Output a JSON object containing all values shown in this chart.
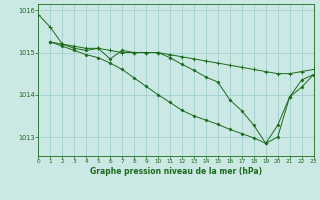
{
  "background_color": "#cce8e4",
  "grid_color": "#99cccc",
  "line_color": "#1a6b1a",
  "marker_color": "#1a6b1a",
  "xlabel": "Graphe pression niveau de la mer (hPa)",
  "xlim": [
    0,
    23
  ],
  "ylim": [
    1012.55,
    1016.15
  ],
  "yticks": [
    1013,
    1014,
    1015,
    1016
  ],
  "xticks": [
    0,
    1,
    2,
    3,
    4,
    5,
    6,
    7,
    8,
    9,
    10,
    11,
    12,
    13,
    14,
    15,
    16,
    17,
    18,
    19,
    20,
    21,
    22,
    23
  ],
  "line1_x": [
    0,
    1,
    2,
    3,
    4,
    5,
    6,
    7,
    8,
    9,
    10,
    11,
    12,
    13,
    14,
    15,
    16,
    17,
    18,
    19,
    20,
    21,
    22,
    23
  ],
  "line1_y": [
    1015.9,
    1015.6,
    1015.2,
    1015.15,
    1015.1,
    1015.1,
    1015.05,
    1015.0,
    1015.0,
    1015.0,
    1015.0,
    1014.95,
    1014.9,
    1014.85,
    1014.8,
    1014.75,
    1014.7,
    1014.65,
    1014.6,
    1014.55,
    1014.5,
    1014.5,
    1014.55,
    1014.6
  ],
  "line2_x": [
    1,
    2,
    3,
    4,
    5,
    6,
    7,
    8,
    9,
    10,
    11,
    12,
    13,
    14,
    15,
    16,
    17,
    18,
    19,
    20,
    21,
    22,
    23
  ],
  "line2_y": [
    1015.25,
    1015.2,
    1015.1,
    1015.05,
    1015.1,
    1014.85,
    1015.05,
    1015.0,
    1015.0,
    1015.0,
    1014.88,
    1014.72,
    1014.58,
    1014.42,
    1014.3,
    1013.88,
    1013.62,
    1013.28,
    1012.85,
    1013.28,
    1013.95,
    1014.35,
    1014.48
  ],
  "line3_x": [
    1,
    2,
    3,
    4,
    5,
    6,
    7,
    8,
    9,
    10,
    11,
    12,
    13,
    14,
    15,
    16,
    17,
    18,
    19,
    20,
    21,
    22,
    23
  ],
  "line3_y": [
    1015.25,
    1015.15,
    1015.05,
    1014.95,
    1014.88,
    1014.75,
    1014.6,
    1014.4,
    1014.2,
    1014.0,
    1013.82,
    1013.63,
    1013.5,
    1013.4,
    1013.3,
    1013.18,
    1013.08,
    1012.98,
    1012.85,
    1013.0,
    1013.95,
    1014.18,
    1014.48
  ]
}
